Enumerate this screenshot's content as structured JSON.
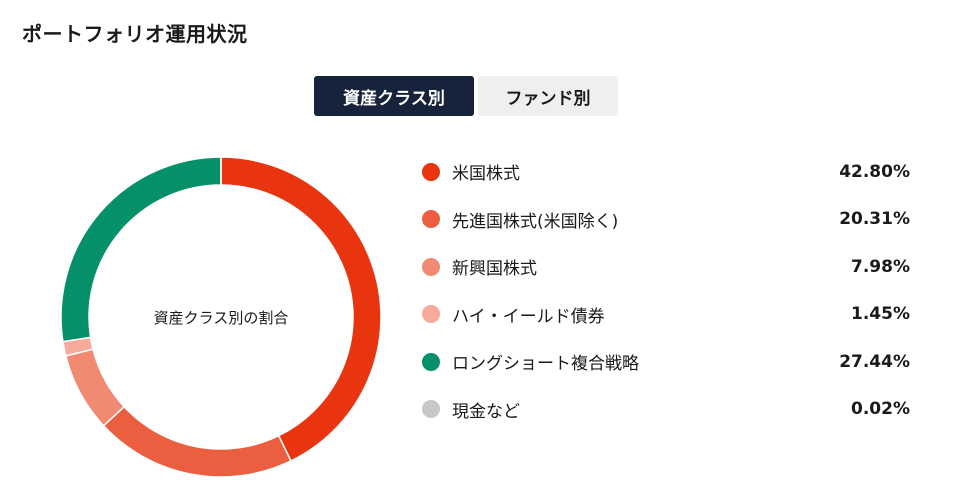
{
  "page": {
    "title": "ポートフォリオ運用状況"
  },
  "tabs": [
    {
      "label": "資産クラス別",
      "active": true
    },
    {
      "label": "ファンド別",
      "active": false
    }
  ],
  "chart_data": {
    "type": "pie",
    "subtype": "donut",
    "center_label": "資産クラス別の割合",
    "start": "top, clockwise",
    "legend_position": "right",
    "series": [
      {
        "name": "米国株式",
        "value": 42.8,
        "display": "42.80%",
        "color": "#e8340f"
      },
      {
        "name": "先進国株式(米国除く)",
        "value": 20.31,
        "display": "20.31%",
        "color": "#ec5e40"
      },
      {
        "name": "新興国株式",
        "value": 7.98,
        "display": "7.98%",
        "color": "#f08a72"
      },
      {
        "name": "ハイ・イールド債券",
        "value": 1.45,
        "display": "1.45%",
        "color": "#f5aa9a"
      },
      {
        "name": "ロングショート複合戦略",
        "value": 27.44,
        "display": "27.44%",
        "color": "#06906a"
      },
      {
        "name": "現金など",
        "value": 0.02,
        "display": "0.02%",
        "color": "#c8c8c8"
      }
    ]
  }
}
